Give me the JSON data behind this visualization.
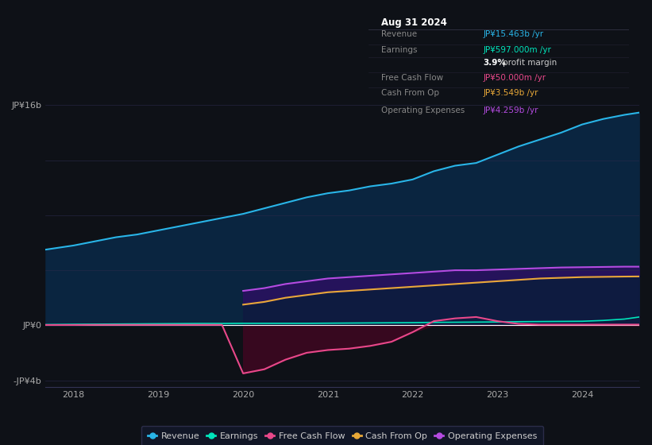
{
  "background_color": "#0e1117",
  "plot_bg_color": "#0e1117",
  "years": [
    2017.67,
    2018.0,
    2018.25,
    2018.5,
    2018.75,
    2019.0,
    2019.25,
    2019.5,
    2019.75,
    2020.0,
    2020.25,
    2020.5,
    2020.75,
    2021.0,
    2021.25,
    2021.5,
    2021.75,
    2022.0,
    2022.25,
    2022.5,
    2022.75,
    2023.0,
    2023.25,
    2023.5,
    2023.75,
    2024.0,
    2024.25,
    2024.5,
    2024.67
  ],
  "revenue": [
    5.5,
    5.8,
    6.1,
    6.4,
    6.6,
    6.9,
    7.2,
    7.5,
    7.8,
    8.1,
    8.5,
    8.9,
    9.3,
    9.6,
    9.8,
    10.1,
    10.3,
    10.6,
    11.2,
    11.6,
    11.8,
    12.4,
    13.0,
    13.5,
    14.0,
    14.6,
    15.0,
    15.3,
    15.46
  ],
  "earnings": [
    0.05,
    0.07,
    0.08,
    0.09,
    0.1,
    0.11,
    0.12,
    0.13,
    0.13,
    0.14,
    0.14,
    0.14,
    0.14,
    0.15,
    0.16,
    0.17,
    0.18,
    0.19,
    0.21,
    0.22,
    0.23,
    0.24,
    0.26,
    0.27,
    0.28,
    0.29,
    0.35,
    0.45,
    0.597
  ],
  "free_cash_flow": [
    0.02,
    0.02,
    0.03,
    0.03,
    0.03,
    0.03,
    0.03,
    0.03,
    0.03,
    -3.5,
    -3.2,
    -2.5,
    -2.0,
    -1.8,
    -1.7,
    -1.5,
    -1.2,
    -0.5,
    0.3,
    0.5,
    0.6,
    0.3,
    0.1,
    0.05,
    0.05,
    0.05,
    0.05,
    0.05,
    0.05
  ],
  "cash_from_op": [
    0.0,
    0.0,
    0.0,
    0.0,
    0.0,
    0.0,
    0.0,
    0.0,
    0.0,
    1.5,
    1.7,
    2.0,
    2.2,
    2.4,
    2.5,
    2.6,
    2.7,
    2.8,
    2.9,
    3.0,
    3.1,
    3.2,
    3.3,
    3.4,
    3.45,
    3.5,
    3.52,
    3.54,
    3.549
  ],
  "operating_expenses": [
    0.0,
    0.0,
    0.0,
    0.0,
    0.0,
    0.0,
    0.0,
    0.0,
    0.0,
    2.5,
    2.7,
    3.0,
    3.2,
    3.4,
    3.5,
    3.6,
    3.7,
    3.8,
    3.9,
    4.0,
    4.0,
    4.05,
    4.1,
    4.15,
    4.2,
    4.22,
    4.24,
    4.26,
    4.259
  ],
  "ylim": [
    -4.5,
    17.5
  ],
  "ytick_values": [
    -4,
    0,
    16
  ],
  "ytick_labels": [
    "-JP¥4b",
    "JP¥0",
    "JP¥16b"
  ],
  "xticks": [
    2018,
    2019,
    2020,
    2021,
    2022,
    2023,
    2024
  ],
  "revenue_line_color": "#29b5e8",
  "earnings_line_color": "#00e5bb",
  "fcf_line_color": "#e8488a",
  "cashop_line_color": "#e8a838",
  "opex_line_color": "#b44be1",
  "revenue_fill_color": "#0a2540",
  "opex_cashop_fill_color": "#2a1060",
  "cashop_zero_fill_color": "#0f1a40",
  "fcf_neg_fill_color": "#3a0820",
  "info_box_bg": "#080c12",
  "info_title": "Aug 31 2024",
  "info_rows": [
    {
      "label": "Revenue",
      "value": "JP¥15.463b /yr",
      "value_color": "#29b5e8",
      "label_color": "#888888"
    },
    {
      "label": "Earnings",
      "value": "JP¥597.000m /yr",
      "value_color": "#00e5bb",
      "label_color": "#888888"
    },
    {
      "label": "",
      "value": "3.9% profit margin",
      "value_color": "#cccccc",
      "label_color": ""
    },
    {
      "label": "Free Cash Flow",
      "value": "JP¥50.000m /yr",
      "value_color": "#e8488a",
      "label_color": "#888888"
    },
    {
      "label": "Cash From Op",
      "value": "JP¥3.549b /yr",
      "value_color": "#e8a838",
      "label_color": "#888888"
    },
    {
      "label": "Operating Expenses",
      "value": "JP¥4.259b /yr",
      "value_color": "#b44be1",
      "label_color": "#888888"
    }
  ],
  "legend_items": [
    {
      "label": "Revenue",
      "color": "#29b5e8"
    },
    {
      "label": "Earnings",
      "color": "#00e5bb"
    },
    {
      "label": "Free Cash Flow",
      "color": "#e8488a"
    },
    {
      "label": "Cash From Op",
      "color": "#e8a838"
    },
    {
      "label": "Operating Expenses",
      "color": "#b44be1"
    }
  ]
}
